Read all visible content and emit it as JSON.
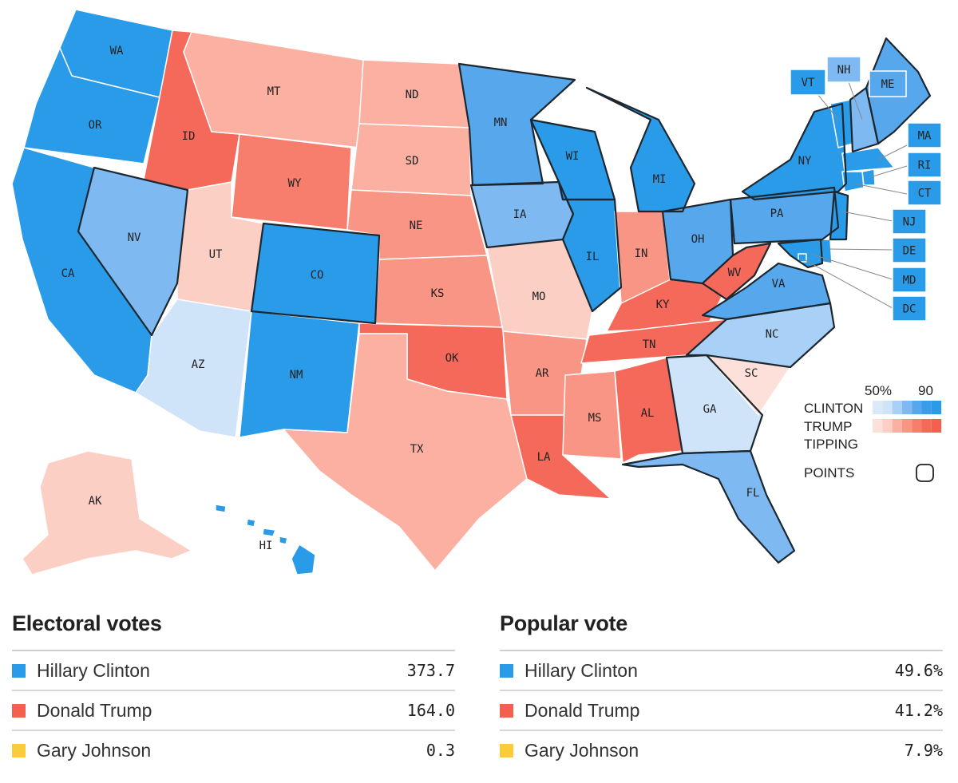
{
  "states": [
    {
      "abbr": "WA",
      "party": "clinton",
      "level": 6
    },
    {
      "abbr": "OR",
      "party": "clinton",
      "level": 6
    },
    {
      "abbr": "CA",
      "party": "clinton",
      "level": 6
    },
    {
      "abbr": "NV",
      "party": "clinton",
      "level": 3
    },
    {
      "abbr": "ID",
      "party": "trump",
      "level": 5
    },
    {
      "abbr": "MT",
      "party": "trump",
      "level": 2
    },
    {
      "abbr": "WY",
      "party": "trump",
      "level": 4
    },
    {
      "abbr": "UT",
      "party": "trump",
      "level": 1
    },
    {
      "abbr": "AZ",
      "party": "clinton",
      "level": 1
    },
    {
      "abbr": "CO",
      "party": "clinton",
      "level": 6
    },
    {
      "abbr": "NM",
      "party": "clinton",
      "level": 6
    },
    {
      "abbr": "ND",
      "party": "trump",
      "level": 2
    },
    {
      "abbr": "SD",
      "party": "trump",
      "level": 2
    },
    {
      "abbr": "NE",
      "party": "trump",
      "level": 3
    },
    {
      "abbr": "KS",
      "party": "trump",
      "level": 3
    },
    {
      "abbr": "OK",
      "party": "trump",
      "level": 5
    },
    {
      "abbr": "TX",
      "party": "trump",
      "level": 2
    },
    {
      "abbr": "MN",
      "party": "clinton",
      "level": 4
    },
    {
      "abbr": "IA",
      "party": "clinton",
      "level": 3
    },
    {
      "abbr": "MO",
      "party": "trump",
      "level": 1
    },
    {
      "abbr": "AR",
      "party": "trump",
      "level": 3
    },
    {
      "abbr": "LA",
      "party": "trump",
      "level": 5
    },
    {
      "abbr": "WI",
      "party": "clinton",
      "level": 6
    },
    {
      "abbr": "IL",
      "party": "clinton",
      "level": 6
    },
    {
      "abbr": "MS",
      "party": "trump",
      "level": 3
    },
    {
      "abbr": "MI",
      "party": "clinton",
      "level": 6
    },
    {
      "abbr": "IN",
      "party": "trump",
      "level": 3
    },
    {
      "abbr": "OH",
      "party": "clinton",
      "level": 4
    },
    {
      "abbr": "KY",
      "party": "trump",
      "level": 5
    },
    {
      "abbr": "TN",
      "party": "trump",
      "level": 5
    },
    {
      "abbr": "AL",
      "party": "trump",
      "level": 5
    },
    {
      "abbr": "GA",
      "party": "clinton",
      "level": 1
    },
    {
      "abbr": "FL",
      "party": "clinton",
      "level": 3
    },
    {
      "abbr": "SC",
      "party": "trump",
      "level": 0
    },
    {
      "abbr": "NC",
      "party": "clinton",
      "level": 2
    },
    {
      "abbr": "VA",
      "party": "clinton",
      "level": 4
    },
    {
      "abbr": "WV",
      "party": "trump",
      "level": 5
    },
    {
      "abbr": "PA",
      "party": "clinton",
      "level": 4
    },
    {
      "abbr": "NY",
      "party": "clinton",
      "level": 6
    },
    {
      "abbr": "VT",
      "party": "clinton",
      "level": 6
    },
    {
      "abbr": "NH",
      "party": "clinton",
      "level": 3
    },
    {
      "abbr": "ME",
      "party": "clinton",
      "level": 4
    },
    {
      "abbr": "MA",
      "party": "clinton",
      "level": 6
    },
    {
      "abbr": "RI",
      "party": "clinton",
      "level": 6
    },
    {
      "abbr": "CT",
      "party": "clinton",
      "level": 6
    },
    {
      "abbr": "NJ",
      "party": "clinton",
      "level": 6
    },
    {
      "abbr": "DE",
      "party": "clinton",
      "level": 6
    },
    {
      "abbr": "MD",
      "party": "clinton",
      "level": 6
    },
    {
      "abbr": "DC",
      "party": "clinton",
      "level": 6
    },
    {
      "abbr": "AK",
      "party": "trump",
      "level": 1
    },
    {
      "abbr": "HI",
      "party": "clinton",
      "level": 6
    }
  ],
  "legend": {
    "pct_low": "50%",
    "pct_high": "90",
    "clinton": "CLINTON",
    "trump": "TRUMP",
    "tipping": "TIPPING",
    "points": "POINTS"
  },
  "colors": {
    "clinton": [
      "#dce9fb",
      "#cfe3f9",
      "#a9d1f7",
      "#7eb9f1",
      "#57a7ec",
      "#3a9cea",
      "#2a9be8"
    ],
    "trump": [
      "#fde0da",
      "#fccfc5",
      "#fbb0a2",
      "#f99585",
      "#f77e6d",
      "#f5695a",
      "#f3604e"
    ],
    "johnson": "#fbcc3a"
  },
  "electoral": {
    "title": "Electoral votes",
    "rows": [
      {
        "name": "Hillary Clinton",
        "value": "373.7"
      },
      {
        "name": "Donald Trump",
        "value": "164.0"
      },
      {
        "name": "Gary Johnson",
        "value": "0.3"
      }
    ]
  },
  "popular": {
    "title": "Popular vote",
    "rows": [
      {
        "name": "Hillary Clinton",
        "value": "49.6%"
      },
      {
        "name": "Donald Trump",
        "value": "41.2%"
      },
      {
        "name": "Gary Johnson",
        "value": "7.9%"
      }
    ]
  }
}
